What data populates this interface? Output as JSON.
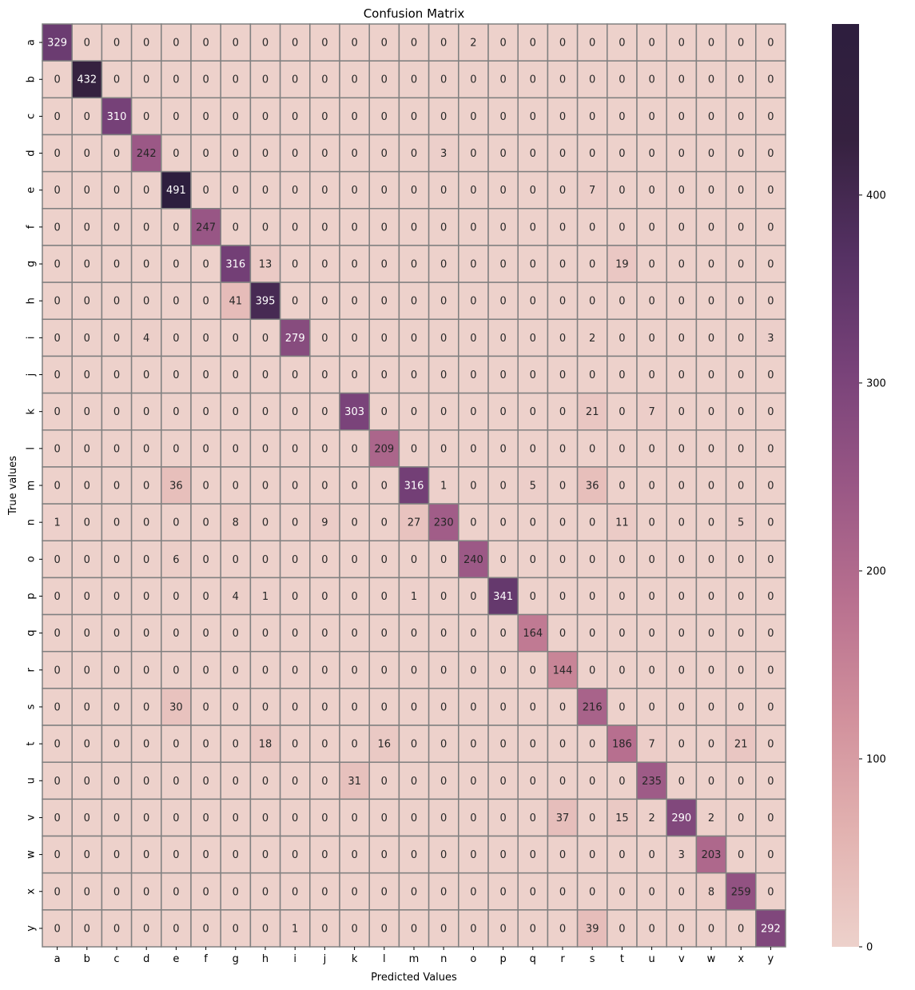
{
  "chart_data": {
    "type": "heatmap",
    "title": "Confusion Matrix",
    "xlabel": "Predicted Values",
    "ylabel": "True values",
    "x_categories": [
      "a",
      "b",
      "c",
      "d",
      "e",
      "f",
      "g",
      "h",
      "i",
      "j",
      "k",
      "l",
      "m",
      "n",
      "o",
      "p",
      "q",
      "r",
      "s",
      "t",
      "u",
      "v",
      "w",
      "x",
      "y"
    ],
    "y_categories": [
      "a",
      "b",
      "c",
      "d",
      "e",
      "f",
      "g",
      "h",
      "i",
      "j",
      "k",
      "l",
      "m",
      "n",
      "o",
      "p",
      "q",
      "r",
      "s",
      "t",
      "u",
      "v",
      "w",
      "x",
      "y"
    ],
    "values": [
      [
        329,
        0,
        0,
        0,
        0,
        0,
        0,
        0,
        0,
        0,
        0,
        0,
        0,
        0,
        2,
        0,
        0,
        0,
        0,
        0,
        0,
        0,
        0,
        0,
        0
      ],
      [
        0,
        432,
        0,
        0,
        0,
        0,
        0,
        0,
        0,
        0,
        0,
        0,
        0,
        0,
        0,
        0,
        0,
        0,
        0,
        0,
        0,
        0,
        0,
        0,
        0
      ],
      [
        0,
        0,
        310,
        0,
        0,
        0,
        0,
        0,
        0,
        0,
        0,
        0,
        0,
        0,
        0,
        0,
        0,
        0,
        0,
        0,
        0,
        0,
        0,
        0,
        0
      ],
      [
        0,
        0,
        0,
        242,
        0,
        0,
        0,
        0,
        0,
        0,
        0,
        0,
        0,
        3,
        0,
        0,
        0,
        0,
        0,
        0,
        0,
        0,
        0,
        0,
        0
      ],
      [
        0,
        0,
        0,
        0,
        491,
        0,
        0,
        0,
        0,
        0,
        0,
        0,
        0,
        0,
        0,
        0,
        0,
        0,
        7,
        0,
        0,
        0,
        0,
        0,
        0
      ],
      [
        0,
        0,
        0,
        0,
        0,
        247,
        0,
        0,
        0,
        0,
        0,
        0,
        0,
        0,
        0,
        0,
        0,
        0,
        0,
        0,
        0,
        0,
        0,
        0,
        0
      ],
      [
        0,
        0,
        0,
        0,
        0,
        0,
        316,
        13,
        0,
        0,
        0,
        0,
        0,
        0,
        0,
        0,
        0,
        0,
        0,
        19,
        0,
        0,
        0,
        0,
        0
      ],
      [
        0,
        0,
        0,
        0,
        0,
        0,
        41,
        395,
        0,
        0,
        0,
        0,
        0,
        0,
        0,
        0,
        0,
        0,
        0,
        0,
        0,
        0,
        0,
        0,
        0
      ],
      [
        0,
        0,
        0,
        4,
        0,
        0,
        0,
        0,
        279,
        0,
        0,
        0,
        0,
        0,
        0,
        0,
        0,
        0,
        2,
        0,
        0,
        0,
        0,
        0,
        3
      ],
      [
        0,
        0,
        0,
        0,
        0,
        0,
        0,
        0,
        0,
        0,
        0,
        0,
        0,
        0,
        0,
        0,
        0,
        0,
        0,
        0,
        0,
        0,
        0,
        0,
        0
      ],
      [
        0,
        0,
        0,
        0,
        0,
        0,
        0,
        0,
        0,
        0,
        303,
        0,
        0,
        0,
        0,
        0,
        0,
        0,
        21,
        0,
        7,
        0,
        0,
        0,
        0
      ],
      [
        0,
        0,
        0,
        0,
        0,
        0,
        0,
        0,
        0,
        0,
        0,
        209,
        0,
        0,
        0,
        0,
        0,
        0,
        0,
        0,
        0,
        0,
        0,
        0,
        0
      ],
      [
        0,
        0,
        0,
        0,
        36,
        0,
        0,
        0,
        0,
        0,
        0,
        0,
        316,
        1,
        0,
        0,
        5,
        0,
        36,
        0,
        0,
        0,
        0,
        0,
        0
      ],
      [
        1,
        0,
        0,
        0,
        0,
        0,
        8,
        0,
        0,
        9,
        0,
        0,
        27,
        230,
        0,
        0,
        0,
        0,
        0,
        11,
        0,
        0,
        0,
        5,
        0
      ],
      [
        0,
        0,
        0,
        0,
        6,
        0,
        0,
        0,
        0,
        0,
        0,
        0,
        0,
        0,
        240,
        0,
        0,
        0,
        0,
        0,
        0,
        0,
        0,
        0,
        0
      ],
      [
        0,
        0,
        0,
        0,
        0,
        0,
        4,
        1,
        0,
        0,
        0,
        0,
        1,
        0,
        0,
        341,
        0,
        0,
        0,
        0,
        0,
        0,
        0,
        0,
        0
      ],
      [
        0,
        0,
        0,
        0,
        0,
        0,
        0,
        0,
        0,
        0,
        0,
        0,
        0,
        0,
        0,
        0,
        164,
        0,
        0,
        0,
        0,
        0,
        0,
        0,
        0
      ],
      [
        0,
        0,
        0,
        0,
        0,
        0,
        0,
        0,
        0,
        0,
        0,
        0,
        0,
        0,
        0,
        0,
        0,
        144,
        0,
        0,
        0,
        0,
        0,
        0,
        0
      ],
      [
        0,
        0,
        0,
        0,
        30,
        0,
        0,
        0,
        0,
        0,
        0,
        0,
        0,
        0,
        0,
        0,
        0,
        0,
        216,
        0,
        0,
        0,
        0,
        0,
        0
      ],
      [
        0,
        0,
        0,
        0,
        0,
        0,
        0,
        18,
        0,
        0,
        0,
        16,
        0,
        0,
        0,
        0,
        0,
        0,
        0,
        186,
        7,
        0,
        0,
        21,
        0
      ],
      [
        0,
        0,
        0,
        0,
        0,
        0,
        0,
        0,
        0,
        0,
        31,
        0,
        0,
        0,
        0,
        0,
        0,
        0,
        0,
        0,
        235,
        0,
        0,
        0,
        0
      ],
      [
        0,
        0,
        0,
        0,
        0,
        0,
        0,
        0,
        0,
        0,
        0,
        0,
        0,
        0,
        0,
        0,
        0,
        37,
        0,
        15,
        2,
        290,
        2,
        0,
        0
      ],
      [
        0,
        0,
        0,
        0,
        0,
        0,
        0,
        0,
        0,
        0,
        0,
        0,
        0,
        0,
        0,
        0,
        0,
        0,
        0,
        0,
        0,
        3,
        203,
        0,
        0
      ],
      [
        0,
        0,
        0,
        0,
        0,
        0,
        0,
        0,
        0,
        0,
        0,
        0,
        0,
        0,
        0,
        0,
        0,
        0,
        0,
        0,
        0,
        0,
        8,
        259,
        0
      ],
      [
        0,
        0,
        0,
        0,
        0,
        0,
        0,
        0,
        1,
        0,
        0,
        0,
        0,
        0,
        0,
        0,
        0,
        0,
        39,
        0,
        0,
        0,
        0,
        0,
        292
      ]
    ],
    "vmin": 0,
    "vmax": 491,
    "colorbar_ticks": [
      0,
      100,
      200,
      300,
      400
    ],
    "colormap": [
      "#edd1cb",
      "#e2b2b0",
      "#d1909c",
      "#b8708f",
      "#995785",
      "#784279",
      "#553163",
      "#35213f",
      "#2d1e3e"
    ],
    "cell_border_color": "#808080",
    "grid": false,
    "legend": "colorbar-right"
  }
}
